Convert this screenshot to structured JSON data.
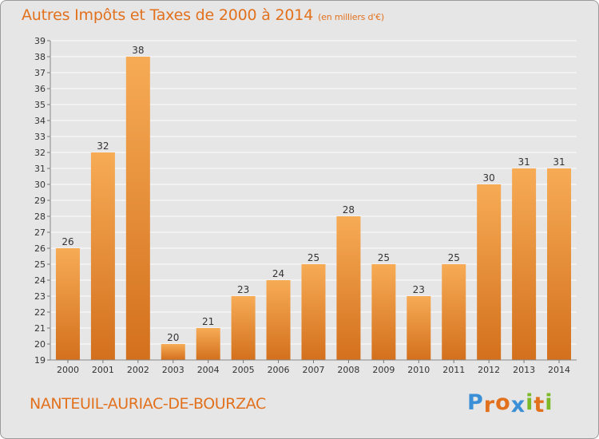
{
  "header": {
    "title": "Autres Impôts et Taxes de 2000 à 2014",
    "unit": "(en milliers d'€)"
  },
  "footer": {
    "commune": "NANTEUIL-AURIAC-DE-BOURZAC",
    "logo": {
      "letters": [
        "P",
        "r",
        "o",
        "x",
        "i",
        "t",
        "i"
      ],
      "colors": [
        "#3a8fd6",
        "#e2711d",
        "#e2711d",
        "#3a8fd6",
        "#7cb928",
        "#e2711d",
        "#7cb928"
      ]
    }
  },
  "colors": {
    "accent": "#e2711d",
    "bar_light": "#f6a850",
    "bar_dark": "#d5701e",
    "background": "#e6e6e6"
  },
  "chart_data": {
    "type": "bar",
    "title": "Autres Impôts et Taxes de 2000 à 2014",
    "subtitle": "(en milliers d'€)",
    "xlabel": "",
    "ylabel": "",
    "categories": [
      "2000",
      "2001",
      "2002",
      "2003",
      "2004",
      "2005",
      "2006",
      "2007",
      "2008",
      "2009",
      "2010",
      "2011",
      "2012",
      "2013",
      "2014"
    ],
    "values": [
      26,
      32,
      38,
      20,
      21,
      23,
      24,
      25,
      28,
      25,
      23,
      25,
      30,
      31,
      31
    ],
    "ylim": [
      19,
      39
    ],
    "yticks": [
      19,
      20,
      21,
      22,
      23,
      24,
      25,
      26,
      27,
      28,
      29,
      30,
      31,
      32,
      33,
      34,
      35,
      36,
      37,
      38,
      39
    ],
    "grid": "horizontal",
    "data_labels": true
  }
}
